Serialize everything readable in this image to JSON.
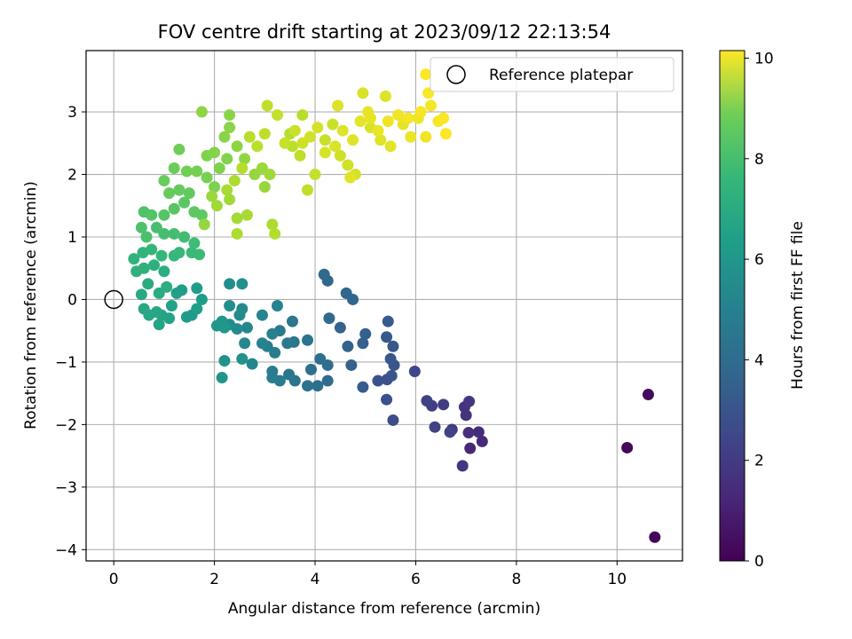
{
  "chart_data": {
    "type": "scatter",
    "title": "FOV centre drift starting at 2023/09/12 22:13:54",
    "xlabel": "Angular distance from reference (arcmin)",
    "ylabel": "Rotation from reference (arcmin)",
    "xlim": [
      -0.55,
      11.3
    ],
    "ylim": [
      -4.18,
      3.98
    ],
    "xticks": [
      0,
      2,
      4,
      6,
      8,
      10
    ],
    "yticks": [
      -4,
      -3,
      -2,
      -1,
      0,
      1,
      2,
      3
    ],
    "grid": true,
    "legend": {
      "position": "upper-right",
      "entries": [
        "Reference platepar"
      ]
    },
    "reference_point": {
      "x": 0,
      "y": 0,
      "label": "Reference platepar"
    },
    "colorbar": {
      "label": "Hours from first FF file",
      "min": 0,
      "max": 10.15,
      "ticks": [
        0,
        2,
        4,
        6,
        8,
        10
      ],
      "colormap": "viridis"
    },
    "series": [
      {
        "color_by": "hours",
        "points": [
          [
            10.75,
            -3.8,
            0.1
          ],
          [
            10.2,
            -2.37,
            0.2
          ],
          [
            10.62,
            -1.52,
            0.3
          ],
          [
            6.93,
            -2.66,
            1.6
          ],
          [
            7.08,
            -2.38,
            1.1
          ],
          [
            7.32,
            -2.27,
            1.2
          ],
          [
            7.25,
            -2.12,
            1.3
          ],
          [
            7.05,
            -2.13,
            1.4
          ],
          [
            7.0,
            -1.85,
            1.5
          ],
          [
            6.97,
            -1.72,
            1.55
          ],
          [
            7.06,
            -1.63,
            1.6
          ],
          [
            6.72,
            -2.08,
            1.7
          ],
          [
            6.55,
            -1.68,
            1.8
          ],
          [
            6.32,
            -1.7,
            1.9
          ],
          [
            6.22,
            -1.62,
            2.0
          ],
          [
            6.38,
            -2.04,
            2.05
          ],
          [
            6.68,
            -2.12,
            2.1
          ],
          [
            5.98,
            -1.15,
            2.2
          ],
          [
            5.55,
            -1.93,
            2.4
          ],
          [
            5.42,
            -1.6,
            2.5
          ],
          [
            5.43,
            -1.28,
            2.55
          ],
          [
            5.25,
            -1.3,
            2.6
          ],
          [
            5.52,
            -1.22,
            2.65
          ],
          [
            5.57,
            -1.05,
            2.7
          ],
          [
            5.5,
            -0.95,
            2.75
          ],
          [
            5.55,
            -0.75,
            2.8
          ],
          [
            5.42,
            -0.6,
            2.85
          ],
          [
            5.45,
            -0.35,
            2.9
          ],
          [
            4.95,
            -1.4,
            3.0
          ],
          [
            4.95,
            -0.7,
            3.05
          ],
          [
            5.0,
            -0.55,
            3.1
          ],
          [
            4.72,
            -1.05,
            3.15
          ],
          [
            4.65,
            -0.75,
            3.2
          ],
          [
            4.5,
            -0.45,
            3.25
          ],
          [
            4.75,
            0.0,
            3.3
          ],
          [
            4.62,
            0.1,
            3.35
          ],
          [
            4.25,
            0.3,
            3.4
          ],
          [
            4.18,
            0.4,
            3.45
          ],
          [
            4.28,
            -0.3,
            3.5
          ],
          [
            4.25,
            -1.3,
            3.55
          ],
          [
            4.25,
            -1.05,
            3.6
          ],
          [
            4.1,
            -0.95,
            3.65
          ],
          [
            4.05,
            -1.38,
            3.7
          ],
          [
            3.92,
            -1.12,
            3.75
          ],
          [
            3.85,
            -1.38,
            3.8
          ],
          [
            3.85,
            -0.65,
            3.85
          ],
          [
            3.6,
            -1.3,
            3.9
          ],
          [
            3.48,
            -1.2,
            3.95
          ],
          [
            3.58,
            -0.68,
            4.0
          ],
          [
            3.55,
            -0.35,
            4.05
          ],
          [
            3.45,
            -0.7,
            4.1
          ],
          [
            3.3,
            -0.5,
            4.15
          ],
          [
            3.3,
            -1.3,
            4.2
          ],
          [
            3.15,
            -1.15,
            4.25
          ],
          [
            3.15,
            -1.25,
            4.3
          ],
          [
            3.2,
            -0.85,
            4.35
          ],
          [
            3.05,
            -0.75,
            4.4
          ],
          [
            3.15,
            -0.55,
            4.45
          ],
          [
            3.25,
            -0.1,
            4.5
          ],
          [
            2.95,
            -0.7,
            4.55
          ],
          [
            2.95,
            -0.25,
            4.6
          ],
          [
            2.75,
            -1.03,
            4.65
          ],
          [
            2.65,
            -0.45,
            4.7
          ],
          [
            2.6,
            -0.7,
            4.75
          ],
          [
            2.55,
            -0.15,
            4.8
          ],
          [
            2.5,
            -0.25,
            4.85
          ],
          [
            2.45,
            -0.47,
            4.9
          ],
          [
            2.3,
            -0.4,
            4.95
          ],
          [
            2.3,
            -0.1,
            5.0
          ],
          [
            2.3,
            0.25,
            5.05
          ],
          [
            2.55,
            0.25,
            5.1
          ],
          [
            2.55,
            -0.95,
            5.15
          ],
          [
            2.2,
            -0.98,
            5.2
          ],
          [
            2.15,
            -1.25,
            5.25
          ],
          [
            2.15,
            -0.35,
            5.3
          ],
          [
            2.05,
            -0.42,
            5.35
          ],
          [
            2.2,
            -0.45,
            5.4
          ],
          [
            1.55,
            -0.25,
            5.45
          ],
          [
            1.45,
            -0.28,
            5.5
          ],
          [
            1.65,
            0.18,
            5.55
          ],
          [
            1.75,
            0.0,
            5.6
          ],
          [
            1.65,
            -0.15,
            5.65
          ],
          [
            1.35,
            0.15,
            5.7
          ],
          [
            1.25,
            0.1,
            5.75
          ],
          [
            1.15,
            -0.1,
            5.8
          ],
          [
            1.1,
            -0.3,
            5.85
          ],
          [
            0.95,
            -0.25,
            5.9
          ],
          [
            0.9,
            -0.4,
            5.95
          ],
          [
            0.85,
            -0.2,
            6.0
          ],
          [
            0.7,
            -0.25,
            6.05
          ],
          [
            0.6,
            -0.15,
            6.1
          ],
          [
            0.55,
            0.08,
            6.15
          ],
          [
            0.68,
            0.25,
            6.2
          ],
          [
            0.9,
            0.1,
            6.25
          ],
          [
            1.05,
            0.2,
            6.3
          ],
          [
            1.0,
            0.45,
            6.35
          ],
          [
            0.8,
            0.55,
            6.4
          ],
          [
            0.6,
            0.5,
            6.45
          ],
          [
            0.45,
            0.45,
            6.5
          ],
          [
            0.4,
            0.65,
            6.55
          ],
          [
            0.58,
            0.75,
            6.6
          ],
          [
            0.75,
            0.8,
            6.65
          ],
          [
            0.95,
            0.7,
            6.7
          ],
          [
            1.2,
            0.7,
            6.75
          ],
          [
            1.3,
            0.75,
            6.8
          ],
          [
            1.55,
            0.75,
            6.85
          ],
          [
            1.7,
            0.72,
            6.9
          ],
          [
            1.6,
            0.9,
            6.95
          ],
          [
            1.4,
            1.0,
            7.0
          ],
          [
            1.2,
            1.05,
            7.05
          ],
          [
            1.0,
            1.05,
            7.1
          ],
          [
            0.85,
            1.15,
            7.15
          ],
          [
            0.65,
            1.0,
            7.2
          ],
          [
            0.55,
            1.15,
            7.25
          ],
          [
            0.6,
            1.4,
            7.3
          ],
          [
            0.75,
            1.35,
            7.35
          ],
          [
            1.0,
            1.35,
            7.4
          ],
          [
            1.2,
            1.45,
            7.45
          ],
          [
            1.4,
            1.55,
            7.5
          ],
          [
            1.6,
            1.4,
            7.55
          ],
          [
            1.75,
            1.35,
            7.6
          ],
          [
            1.5,
            1.7,
            7.65
          ],
          [
            1.3,
            1.75,
            7.7
          ],
          [
            1.1,
            1.7,
            7.75
          ],
          [
            1.0,
            1.9,
            7.8
          ],
          [
            1.2,
            2.1,
            7.85
          ],
          [
            1.3,
            2.4,
            7.9
          ],
          [
            1.45,
            2.05,
            7.95
          ],
          [
            1.65,
            2.05,
            8.0
          ],
          [
            1.85,
            1.95,
            8.05
          ],
          [
            2.0,
            1.8,
            8.1
          ],
          [
            2.1,
            2.1,
            8.15
          ],
          [
            2.25,
            2.25,
            8.2
          ],
          [
            2.0,
            2.35,
            8.25
          ],
          [
            2.2,
            2.6,
            8.3
          ],
          [
            2.3,
            2.75,
            8.35
          ],
          [
            2.45,
            2.45,
            8.4
          ],
          [
            2.6,
            2.25,
            8.45
          ],
          [
            2.8,
            2.0,
            8.5
          ],
          [
            3.0,
            1.8,
            8.55
          ],
          [
            2.95,
            2.1,
            8.6
          ],
          [
            3.1,
            2.0,
            8.65
          ],
          [
            2.3,
            1.6,
            8.7
          ],
          [
            2.45,
            1.3,
            8.75
          ],
          [
            2.65,
            1.35,
            8.8
          ],
          [
            2.45,
            1.05,
            8.85
          ],
          [
            3.15,
            1.2,
            8.9
          ],
          [
            3.2,
            1.05,
            8.95
          ],
          [
            3.5,
            2.65,
            9.0
          ],
          [
            3.75,
            2.95,
            9.05
          ],
          [
            3.55,
            2.45,
            9.1
          ],
          [
            3.7,
            2.3,
            9.15
          ],
          [
            3.85,
            1.75,
            9.2
          ],
          [
            4.0,
            2.0,
            9.25
          ],
          [
            4.2,
            2.55,
            9.3
          ],
          [
            4.35,
            2.8,
            9.35
          ],
          [
            4.5,
            2.3,
            9.4
          ],
          [
            4.65,
            2.15,
            9.45
          ],
          [
            4.8,
            2.0,
            9.5
          ],
          [
            4.95,
            3.3,
            9.55
          ],
          [
            5.1,
            2.75,
            9.6
          ],
          [
            5.4,
            3.25,
            9.65
          ],
          [
            5.3,
            2.55,
            9.7
          ],
          [
            5.5,
            2.45,
            9.75
          ],
          [
            5.75,
            2.8,
            9.8
          ],
          [
            5.9,
            2.6,
            9.85
          ],
          [
            6.05,
            2.9,
            9.9
          ],
          [
            6.2,
            2.6,
            9.95
          ],
          [
            6.3,
            3.1,
            10.0
          ],
          [
            6.45,
            2.85,
            10.05
          ],
          [
            6.55,
            2.9,
            10.08
          ],
          [
            6.25,
            3.3,
            10.1
          ],
          [
            6.2,
            3.6,
            10.12
          ],
          [
            6.1,
            3.0,
            10.05
          ],
          [
            5.85,
            2.9,
            10.0
          ],
          [
            5.65,
            2.95,
            9.95
          ],
          [
            5.45,
            2.85,
            9.9
          ],
          [
            5.25,
            2.7,
            9.85
          ],
          [
            5.05,
            3.0,
            9.8
          ],
          [
            4.9,
            2.85,
            9.75
          ],
          [
            4.75,
            2.55,
            9.7
          ],
          [
            4.55,
            2.7,
            9.65
          ],
          [
            4.4,
            2.45,
            9.6
          ],
          [
            4.2,
            2.35,
            9.55
          ],
          [
            4.05,
            2.75,
            9.5
          ],
          [
            3.9,
            2.6,
            9.45
          ],
          [
            3.75,
            2.5,
            9.4
          ],
          [
            3.6,
            2.7,
            9.35
          ],
          [
            3.4,
            2.5,
            9.3
          ],
          [
            3.25,
            2.95,
            9.25
          ],
          [
            3.05,
            3.1,
            9.2
          ],
          [
            3.0,
            2.65,
            9.15
          ],
          [
            2.85,
            2.45,
            9.1
          ],
          [
            2.7,
            2.6,
            9.05
          ],
          [
            2.55,
            2.1,
            9.0
          ],
          [
            2.4,
            1.9,
            8.9
          ],
          [
            2.25,
            1.75,
            8.8
          ],
          [
            2.05,
            1.5,
            8.7
          ],
          [
            1.95,
            1.65,
            8.6
          ],
          [
            1.8,
            1.2,
            8.5
          ],
          [
            1.75,
            3.0,
            8.4
          ],
          [
            2.3,
            2.95,
            8.3
          ],
          [
            1.85,
            2.3,
            8.2
          ],
          [
            4.45,
            3.1,
            9.6
          ],
          [
            4.7,
            1.95,
            9.7
          ],
          [
            5.1,
            2.9,
            9.8
          ],
          [
            6.6,
            2.65,
            10.1
          ]
        ]
      }
    ]
  }
}
